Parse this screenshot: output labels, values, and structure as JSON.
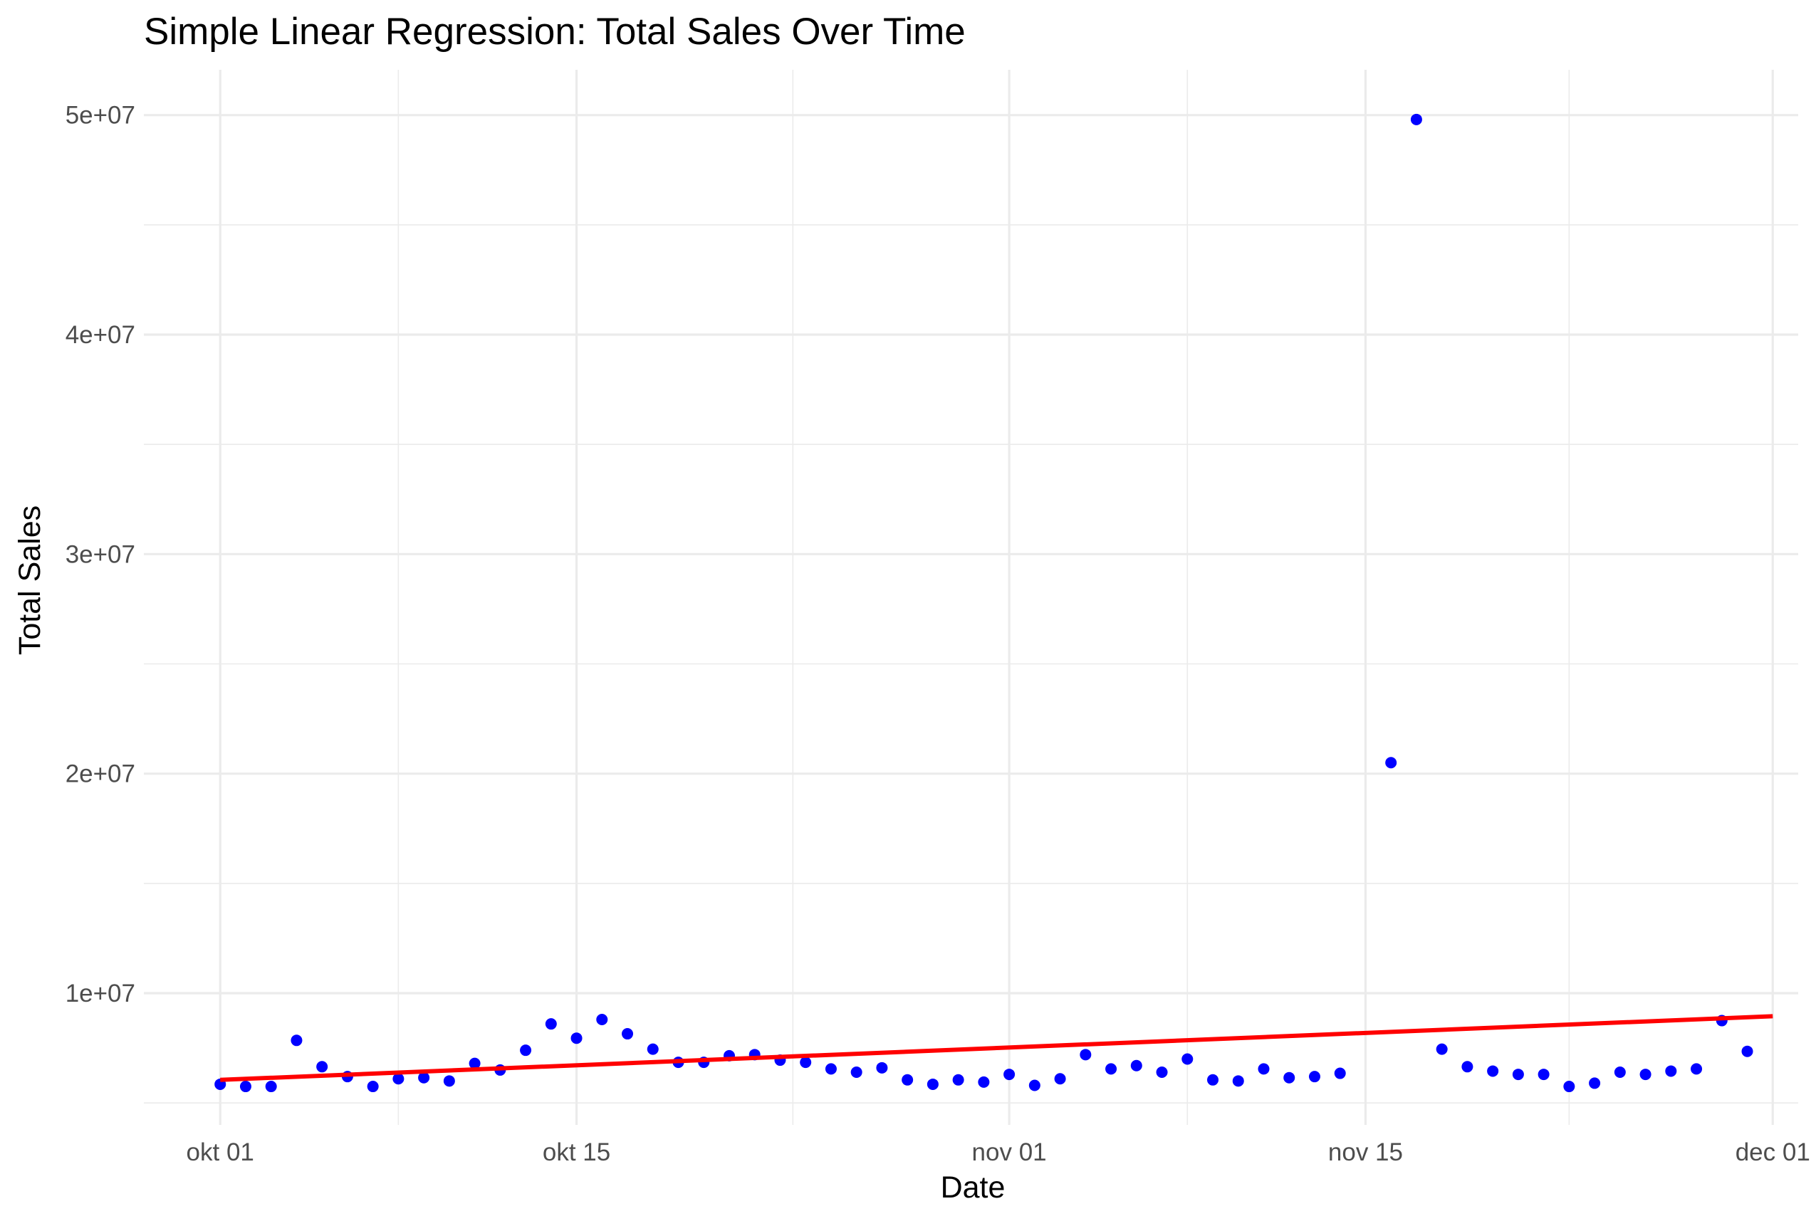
{
  "chart_data": {
    "type": "scatter",
    "title": "Simple Linear Regression: Total Sales Over Time",
    "xlabel": "Date",
    "ylabel": "Total Sales",
    "x_ticks": [
      {
        "value": "2023-10-01",
        "label": "okt 01"
      },
      {
        "value": "2023-10-15",
        "label": "okt 15"
      },
      {
        "value": "2023-11-01",
        "label": "nov 01"
      },
      {
        "value": "2023-11-15",
        "label": "nov 15"
      },
      {
        "value": "2023-12-01",
        "label": "dec 01"
      }
    ],
    "y_ticks": [
      {
        "value": 10000000,
        "label": "1e+07"
      },
      {
        "value": 20000000,
        "label": "2e+07"
      },
      {
        "value": 30000000,
        "label": "3e+07"
      },
      {
        "value": 40000000,
        "label": "4e+07"
      },
      {
        "value": 50000000,
        "label": "5e+07"
      }
    ],
    "xlim": [
      "2023-09-28",
      "2023-12-02"
    ],
    "ylim": [
      4000000,
      52000000
    ],
    "grid": true,
    "point_color": "#0000ff",
    "line_color": "#ff0000",
    "series": [
      {
        "kind": "points",
        "x": [
          "2023-10-01",
          "2023-10-02",
          "2023-10-03",
          "2023-10-04",
          "2023-10-05",
          "2023-10-06",
          "2023-10-07",
          "2023-10-08",
          "2023-10-09",
          "2023-10-10",
          "2023-10-11",
          "2023-10-12",
          "2023-10-13",
          "2023-10-14",
          "2023-10-15",
          "2023-10-16",
          "2023-10-17",
          "2023-10-18",
          "2023-10-19",
          "2023-10-20",
          "2023-10-21",
          "2023-10-22",
          "2023-10-23",
          "2023-10-24",
          "2023-10-25",
          "2023-10-26",
          "2023-10-27",
          "2023-10-28",
          "2023-10-29",
          "2023-10-30",
          "2023-10-31",
          "2023-11-01",
          "2023-11-02",
          "2023-11-03",
          "2023-11-04",
          "2023-11-05",
          "2023-11-06",
          "2023-11-07",
          "2023-11-08",
          "2023-11-09",
          "2023-11-10",
          "2023-11-11",
          "2023-11-12",
          "2023-11-13",
          "2023-11-14",
          "2023-11-15",
          "2023-11-16",
          "2023-11-17",
          "2023-11-18",
          "2023-11-19",
          "2023-11-20",
          "2023-11-21",
          "2023-11-22",
          "2023-11-23",
          "2023-11-24",
          "2023-11-25",
          "2023-11-26",
          "2023-11-27",
          "2023-11-28",
          "2023-11-29",
          "2023-11-30",
          "2023-12-01"
        ],
        "y": [
          5850000,
          5750000,
          5750000,
          7850000,
          6650000,
          6200000,
          5750000,
          6100000,
          6150000,
          6000000,
          6800000,
          6500000,
          7400000,
          8600000,
          7950000,
          8800000,
          8150000,
          7450000,
          6850000,
          6850000,
          7150000,
          7200000,
          6950000,
          6850000,
          6550000,
          6400000,
          6600000,
          6050000,
          5850000,
          6050000,
          5950000,
          6300000,
          5800000,
          6100000,
          7200000,
          6550000,
          6700000,
          6400000,
          7000000,
          6050000,
          6000000,
          6550000,
          6150000,
          6200000,
          6350000,
          null,
          20500000,
          49800000,
          7450000,
          6650000,
          6450000,
          6300000,
          6300000,
          5750000,
          5900000,
          6400000,
          6300000,
          6450000,
          6550000,
          8750000,
          7350000,
          null
        ]
      },
      {
        "kind": "regression-line",
        "x": [
          "2023-10-01",
          "2023-12-01"
        ],
        "y": [
          6050000,
          8950000
        ]
      }
    ]
  }
}
